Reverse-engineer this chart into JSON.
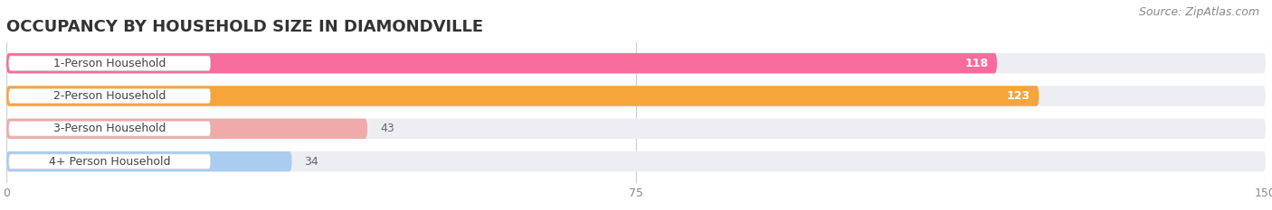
{
  "title": "OCCUPANCY BY HOUSEHOLD SIZE IN DIAMONDVILLE",
  "source": "Source: ZipAtlas.com",
  "categories": [
    "1-Person Household",
    "2-Person Household",
    "3-Person Household",
    "4+ Person Household"
  ],
  "values": [
    118,
    123,
    43,
    34
  ],
  "bar_colors": [
    "#F76C9C",
    "#F5A53A",
    "#F0AAAA",
    "#AACCEE"
  ],
  "bar_bg_color": "#EDEEF2",
  "value_inside": [
    true,
    true,
    false,
    false
  ],
  "xlim": [
    0,
    150
  ],
  "xticks": [
    0,
    75,
    150
  ],
  "title_fontsize": 13,
  "source_fontsize": 9,
  "label_fontsize": 9,
  "value_fontsize": 9,
  "background_color": "#FFFFFF",
  "label_pill_color": "#FFFFFF",
  "label_text_color": "#444444",
  "value_inside_color": "#FFFFFF",
  "value_outside_color": "#666666"
}
